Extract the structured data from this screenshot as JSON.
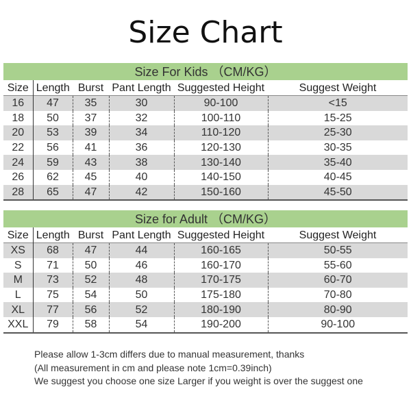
{
  "title": "Size Chart",
  "columns": [
    "Size",
    "Length",
    "Burst",
    "Pant Length",
    "Suggested Height",
    "Suggest Weight"
  ],
  "kids": {
    "heading": "Size For Kids （CM/KG）",
    "rows": [
      [
        "16",
        "47",
        "35",
        "30",
        "90-100",
        "<15"
      ],
      [
        "18",
        "50",
        "37",
        "32",
        "100-110",
        "15-25"
      ],
      [
        "20",
        "53",
        "39",
        "34",
        "110-120",
        "25-30"
      ],
      [
        "22",
        "56",
        "41",
        "36",
        "120-130",
        "30-35"
      ],
      [
        "24",
        "59",
        "43",
        "38",
        "130-140",
        "35-40"
      ],
      [
        "26",
        "62",
        "45",
        "40",
        "140-150",
        "40-45"
      ],
      [
        "28",
        "65",
        "47",
        "42",
        "150-160",
        "45-50"
      ]
    ]
  },
  "adult": {
    "heading": "Size for Adult （CM/KG）",
    "rows": [
      [
        "XS",
        "68",
        "47",
        "44",
        "160-165",
        "50-55"
      ],
      [
        "S",
        "71",
        "50",
        "46",
        "160-170",
        "55-60"
      ],
      [
        "M",
        "73",
        "52",
        "48",
        "170-175",
        "60-70"
      ],
      [
        "L",
        "75",
        "54",
        "50",
        "175-180",
        "70-80"
      ],
      [
        "XL",
        "77",
        "56",
        "52",
        "180-190",
        "80-90"
      ],
      [
        "XXL",
        "79",
        "58",
        "54",
        "190-200",
        "90-100"
      ]
    ]
  },
  "notes": [
    "Please allow 1-3cm differs due to manual measurement, thanks",
    "(All measurement in cm and please note 1cm=0.39inch)",
    "We suggest you choose one size Larger if you weight is over the suggest one"
  ],
  "colors": {
    "band": "#a9d18e",
    "stripe": "#d9d9d9"
  }
}
